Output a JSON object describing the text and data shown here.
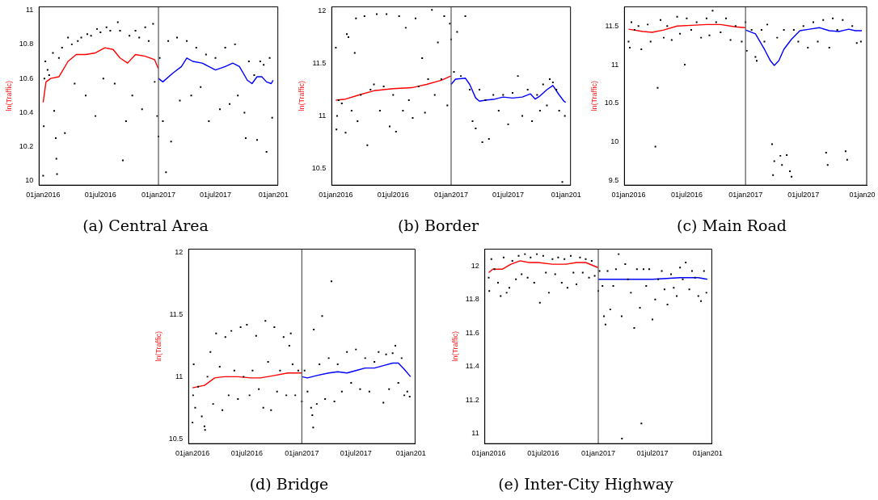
{
  "chart_data": [
    {
      "type": "scatter",
      "title": "(a) Central Area",
      "ylabel": "ln(Traffic)",
      "marker": "square",
      "grid": false,
      "legend": false,
      "xlim": [
        "2015-12-19",
        "2018-01-15"
      ],
      "ylim": [
        9.975,
        11.02
      ],
      "xticks": [
        {
          "value": "2016-01-01",
          "label": "01jan2016"
        },
        {
          "value": "2016-07-01",
          "label": "01jul2016"
        },
        {
          "value": "2017-01-01",
          "label": "01jan2017"
        },
        {
          "value": "2017-07-01",
          "label": "01jul2017"
        },
        {
          "value": "2018-01-01",
          "label": "01jan201"
        }
      ],
      "yticks": [
        10,
        10.2,
        10.4,
        10.6,
        10.8,
        11
      ],
      "ref_lines": [
        {
          "axis": "x",
          "value": "2017-01-01",
          "color": "#555555"
        }
      ],
      "series": [
        {
          "color": "#000000",
          "x": [
            "2016-01-01",
            "2016-01-03",
            "2016-01-05",
            "2016-01-08",
            "2016-01-15",
            "2016-01-20",
            "2016-02-01",
            "2016-02-05",
            "2016-02-10",
            "2016-02-12",
            "2016-02-14",
            "2016-02-20",
            "2016-03-01",
            "2016-03-10",
            "2016-03-20",
            "2016-04-01",
            "2016-04-10",
            "2016-04-20",
            "2016-05-01",
            "2016-05-15",
            "2016-05-20",
            "2016-06-01",
            "2016-06-15",
            "2016-06-20",
            "2016-07-01",
            "2016-07-10",
            "2016-07-20",
            "2016-08-01",
            "2016-08-15",
            "2016-08-25",
            "2016-09-01",
            "2016-09-10",
            "2016-09-20",
            "2016-10-01",
            "2016-10-10",
            "2016-10-20",
            "2016-11-01",
            "2016-11-10",
            "2016-11-20",
            "2016-12-01",
            "2016-12-15",
            "2016-12-20",
            "2016-12-28",
            "2017-01-01",
            "2017-01-05",
            "2017-01-15",
            "2017-01-25",
            "2017-02-01",
            "2017-02-10",
            "2017-03-01",
            "2017-03-10",
            "2017-04-01",
            "2017-04-15",
            "2017-05-01",
            "2017-05-15",
            "2017-06-01",
            "2017-06-10",
            "2017-07-01",
            "2017-07-15",
            "2017-08-01",
            "2017-08-15",
            "2017-09-01",
            "2017-09-10",
            "2017-10-01",
            "2017-10-05",
            "2017-10-15",
            "2017-11-01",
            "2017-11-10",
            "2017-11-20",
            "2017-12-01",
            "2017-12-10",
            "2017-12-20",
            "2017-12-28"
          ],
          "values": [
            10.03,
            10.32,
            10.6,
            10.7,
            10.65,
            10.62,
            10.75,
            10.41,
            10.25,
            10.13,
            10.04,
            10.72,
            10.78,
            10.28,
            10.84,
            10.8,
            10.57,
            10.82,
            10.84,
            10.5,
            10.86,
            10.85,
            10.38,
            10.89,
            10.87,
            10.6,
            10.9,
            10.88,
            10.57,
            10.93,
            10.88,
            10.12,
            10.35,
            10.85,
            10.5,
            10.88,
            10.84,
            10.42,
            10.9,
            10.82,
            10.92,
            10.58,
            10.38,
            10.26,
            10.72,
            10.35,
            10.05,
            10.82,
            10.23,
            10.84,
            10.47,
            10.82,
            10.5,
            10.78,
            10.55,
            10.74,
            10.35,
            10.72,
            10.42,
            10.78,
            10.45,
            10.8,
            10.5,
            10.4,
            10.25,
            10.7,
            10.62,
            10.24,
            10.7,
            10.68,
            10.17,
            10.72,
            10.37
          ]
        },
        {
          "type": "line",
          "color": "#ff0000",
          "x": [
            "2016-01-01",
            "2016-01-10",
            "2016-01-25",
            "2016-02-20",
            "2016-03-20",
            "2016-04-15",
            "2016-05-15",
            "2016-06-15",
            "2016-07-15",
            "2016-08-10",
            "2016-09-01",
            "2016-09-25",
            "2016-10-20",
            "2016-11-20",
            "2016-12-20",
            "2016-12-31"
          ],
          "values": [
            10.46,
            10.58,
            10.6,
            10.61,
            10.7,
            10.74,
            10.74,
            10.75,
            10.78,
            10.77,
            10.72,
            10.69,
            10.74,
            10.73,
            10.71,
            10.66
          ],
          "marker": "none"
        },
        {
          "type": "line",
          "color": "#0000ff",
          "x": [
            "2017-01-01",
            "2017-01-15",
            "2017-02-15",
            "2017-03-15",
            "2017-04-01",
            "2017-04-20",
            "2017-05-20",
            "2017-06-10",
            "2017-07-01",
            "2017-08-01",
            "2017-08-25",
            "2017-09-15",
            "2017-10-10",
            "2017-10-25",
            "2017-11-10",
            "2017-11-25",
            "2017-12-10",
            "2017-12-25",
            "2017-12-31"
          ],
          "values": [
            10.6,
            10.58,
            10.63,
            10.67,
            10.72,
            10.7,
            10.69,
            10.67,
            10.65,
            10.67,
            10.69,
            10.67,
            10.59,
            10.57,
            10.61,
            10.61,
            10.58,
            10.57,
            10.59
          ],
          "marker": "none"
        }
      ]
    },
    {
      "type": "scatter",
      "title": "(b) Border",
      "ylabel": "ln(Traffic)",
      "marker": "square",
      "grid": false,
      "legend": false,
      "xlim": [
        "2015-12-19",
        "2018-01-15"
      ],
      "ylim": [
        10.34,
        12.04
      ],
      "xticks": [
        {
          "value": "2016-01-01",
          "label": "01jan2016"
        },
        {
          "value": "2016-07-01",
          "label": "01jul2016"
        },
        {
          "value": "2017-01-01",
          "label": "01jan2017"
        },
        {
          "value": "2017-07-01",
          "label": "01jul2017"
        },
        {
          "value": "2018-01-01",
          "label": "01jan201"
        }
      ],
      "yticks": [
        10.5,
        11,
        11.5,
        12
      ],
      "ref_lines": [
        {
          "axis": "x",
          "value": "2017-01-01",
          "color": "#555555"
        }
      ],
      "series": [
        {
          "color": "#000000",
          "x": [
            "2016-01-01",
            "2016-01-03",
            "2016-01-05",
            "2016-01-10",
            "2016-01-20",
            "2016-02-01",
            "2016-02-05",
            "2016-02-10",
            "2016-02-20",
            "2016-03-01",
            "2016-03-05",
            "2016-03-10",
            "2016-03-20",
            "2016-04-01",
            "2016-04-10",
            "2016-04-20",
            "2016-05-01",
            "2016-05-10",
            "2016-05-20",
            "2016-06-01",
            "2016-06-10",
            "2016-06-20",
            "2016-07-01",
            "2016-07-10",
            "2016-07-20",
            "2016-08-01",
            "2016-08-10",
            "2016-08-20",
            "2016-09-01",
            "2016-09-10",
            "2016-09-20",
            "2016-10-01",
            "2016-10-10",
            "2016-10-20",
            "2016-11-01",
            "2016-11-10",
            "2016-11-20",
            "2016-12-01",
            "2016-12-10",
            "2016-12-20",
            "2016-12-28",
            "2017-01-01",
            "2017-01-10",
            "2017-01-20",
            "2017-02-01",
            "2017-02-15",
            "2017-03-01",
            "2017-03-10",
            "2017-03-20",
            "2017-04-01",
            "2017-04-10",
            "2017-04-20",
            "2017-05-01",
            "2017-05-15",
            "2017-06-01",
            "2017-06-15",
            "2017-07-01",
            "2017-07-15",
            "2017-08-01",
            "2017-08-15",
            "2017-09-01",
            "2017-09-15",
            "2017-10-01",
            "2017-10-10",
            "2017-10-20",
            "2017-11-01",
            "2017-11-10",
            "2017-11-20",
            "2017-12-01",
            "2017-12-10",
            "2017-12-20",
            "2017-12-28"
          ],
          "values": [
            11.65,
            10.87,
            11.0,
            11.15,
            11.12,
            10.84,
            11.78,
            11.75,
            11.05,
            11.6,
            11.93,
            10.95,
            11.2,
            11.95,
            10.72,
            11.25,
            11.3,
            11.97,
            11.05,
            11.28,
            11.97,
            10.9,
            11.2,
            10.85,
            11.95,
            11.05,
            11.84,
            11.15,
            10.98,
            11.93,
            11.28,
            11.55,
            11.03,
            11.35,
            12.01,
            11.2,
            11.7,
            11.35,
            11.95,
            11.1,
            11.88,
            11.73,
            11.42,
            11.8,
            11.38,
            11.95,
            11.25,
            10.95,
            10.88,
            11.25,
            10.75,
            11.15,
            10.78,
            11.2,
            11.05,
            11.2,
            10.92,
            11.22,
            11.38,
            11.0,
            11.25,
            10.95,
            11.2,
            11.05,
            11.3,
            11.1,
            11.35,
            11.32,
            11.25,
            11.05,
            10.37,
            11.0
          ]
        },
        {
          "type": "line",
          "color": "#ff0000",
          "x": [
            "2016-01-01",
            "2016-02-01",
            "2016-03-15",
            "2016-05-01",
            "2016-07-01",
            "2016-09-01",
            "2016-10-15",
            "2016-12-01",
            "2016-12-31"
          ],
          "values": [
            11.15,
            11.16,
            11.2,
            11.24,
            11.26,
            11.27,
            11.3,
            11.34,
            11.38
          ],
          "marker": "none"
        },
        {
          "type": "line",
          "color": "#0000ff",
          "x": [
            "2017-01-01",
            "2017-01-15",
            "2017-02-15",
            "2017-03-01",
            "2017-03-20",
            "2017-04-01",
            "2017-04-20",
            "2017-05-20",
            "2017-06-15",
            "2017-07-15",
            "2017-08-15",
            "2017-09-10",
            "2017-09-25",
            "2017-10-10",
            "2017-11-01",
            "2017-11-20",
            "2017-12-10",
            "2017-12-25",
            "2017-12-31"
          ],
          "values": [
            11.3,
            11.35,
            11.36,
            11.3,
            11.17,
            11.14,
            11.15,
            11.16,
            11.18,
            11.17,
            11.18,
            11.21,
            11.16,
            11.19,
            11.25,
            11.29,
            11.2,
            11.14,
            11.13
          ],
          "marker": "none"
        }
      ]
    },
    {
      "type": "scatter",
      "title": "(c) Main Road",
      "ylabel": "ln(Traffic)",
      "marker": "square",
      "grid": false,
      "legend": false,
      "xlim": [
        "2015-12-19",
        "2018-01-15"
      ],
      "ylim": [
        9.44,
        11.75
      ],
      "xticks": [
        {
          "value": "2016-01-01",
          "label": "01jan2016"
        },
        {
          "value": "2016-07-01",
          "label": "01jul2016"
        },
        {
          "value": "2017-01-01",
          "label": "01jan2017"
        },
        {
          "value": "2017-07-01",
          "label": "01jul2017"
        },
        {
          "value": "2018-01-01",
          "label": "01jan20"
        }
      ],
      "yticks": [
        9.5,
        10,
        10.5,
        11,
        11.5
      ],
      "ref_lines": [
        {
          "axis": "x",
          "value": "2017-01-01",
          "color": "#555555"
        }
      ],
      "series": [
        {
          "color": "#000000",
          "x": [
            "2016-01-01",
            "2016-01-05",
            "2016-01-10",
            "2016-01-20",
            "2016-02-01",
            "2016-02-10",
            "2016-03-01",
            "2016-03-10",
            "2016-03-25",
            "2016-04-01",
            "2016-04-10",
            "2016-04-20",
            "2016-05-01",
            "2016-05-15",
            "2016-06-01",
            "2016-06-10",
            "2016-06-25",
            "2016-07-01",
            "2016-07-15",
            "2016-08-01",
            "2016-08-15",
            "2016-09-01",
            "2016-09-10",
            "2016-09-20",
            "2016-10-01",
            "2016-10-15",
            "2016-11-01",
            "2016-11-15",
            "2016-12-01",
            "2016-12-20",
            "2017-01-01",
            "2017-01-05",
            "2017-01-20",
            "2017-02-01",
            "2017-02-05",
            "2017-02-20",
            "2017-03-01",
            "2017-03-10",
            "2017-03-25",
            "2017-03-28",
            "2017-04-01",
            "2017-04-10",
            "2017-04-20",
            "2017-04-25",
            "2017-05-01",
            "2017-05-10",
            "2017-05-20",
            "2017-05-25",
            "2017-06-01",
            "2017-06-15",
            "2017-07-01",
            "2017-07-15",
            "2017-08-01",
            "2017-08-15",
            "2017-09-01",
            "2017-09-10",
            "2017-09-15",
            "2017-09-20",
            "2017-10-01",
            "2017-10-15",
            "2017-11-01",
            "2017-11-10",
            "2017-11-15",
            "2017-12-01",
            "2017-12-15",
            "2017-12-28"
          ],
          "values": [
            11.3,
            11.22,
            11.55,
            11.45,
            11.5,
            11.2,
            11.52,
            11.3,
            9.94,
            10.7,
            11.58,
            11.35,
            11.5,
            11.32,
            11.62,
            11.4,
            11.0,
            11.6,
            11.45,
            11.55,
            11.35,
            11.6,
            11.38,
            11.7,
            11.55,
            11.42,
            11.6,
            11.32,
            11.5,
            11.3,
            11.55,
            11.18,
            11.45,
            11.1,
            11.05,
            11.45,
            11.3,
            11.52,
            9.97,
            9.57,
            9.75,
            11.35,
            9.82,
            9.7,
            11.45,
            9.83,
            9.62,
            9.55,
            11.45,
            11.3,
            11.5,
            11.22,
            11.55,
            11.3,
            11.58,
            9.86,
            9.7,
            11.22,
            11.6,
            11.45,
            11.58,
            9.88,
            9.77,
            11.5,
            11.28,
            11.3
          ]
        },
        {
          "type": "line",
          "color": "#ff0000",
          "x": [
            "2016-01-01",
            "2016-02-15",
            "2016-03-15",
            "2016-04-20",
            "2016-06-01",
            "2016-07-15",
            "2016-09-01",
            "2016-10-15",
            "2016-12-01",
            "2016-12-31"
          ],
          "values": [
            11.46,
            11.43,
            11.42,
            11.45,
            11.5,
            11.51,
            11.52,
            11.52,
            11.49,
            11.48
          ],
          "marker": "none"
        },
        {
          "type": "line",
          "color": "#0000ff",
          "x": [
            "2017-01-01",
            "2017-02-01",
            "2017-03-01",
            "2017-03-20",
            "2017-04-01",
            "2017-04-15",
            "2017-05-01",
            "2017-05-25",
            "2017-06-20",
            "2017-07-20",
            "2017-08-20",
            "2017-09-20",
            "2017-10-20",
            "2017-11-20",
            "2017-12-10",
            "2017-12-31"
          ],
          "values": [
            11.45,
            11.4,
            11.2,
            11.05,
            10.99,
            11.05,
            11.2,
            11.33,
            11.44,
            11.46,
            11.48,
            11.44,
            11.43,
            11.46,
            11.44,
            11.44
          ],
          "marker": "none"
        }
      ]
    },
    {
      "type": "scatter",
      "title": "(d) Bridge",
      "ylabel": "ln(Traffic)",
      "marker": "square",
      "grid": false,
      "legend": false,
      "xlim": [
        "2015-12-19",
        "2018-01-15"
      ],
      "ylim": [
        10.46,
        12.03
      ],
      "xticks": [
        {
          "value": "2016-01-01",
          "label": "01jan2016"
        },
        {
          "value": "2016-07-01",
          "label": "01jul2016"
        },
        {
          "value": "2017-01-01",
          "label": "01jan2017"
        },
        {
          "value": "2017-07-01",
          "label": "01jul2017"
        },
        {
          "value": "2018-01-01",
          "label": "01jan201"
        }
      ],
      "yticks": [
        10.5,
        11,
        11.5,
        12
      ],
      "ref_lines": [
        {
          "axis": "x",
          "value": "2017-01-01",
          "color": "#555555"
        }
      ],
      "series": [
        {
          "color": "#000000",
          "x": [
            "2016-01-01",
            "2016-01-03",
            "2016-01-05",
            "2016-01-10",
            "2016-01-20",
            "2016-02-01",
            "2016-02-10",
            "2016-02-12",
            "2016-02-20",
            "2016-03-01",
            "2016-03-10",
            "2016-03-20",
            "2016-04-01",
            "2016-04-10",
            "2016-04-20",
            "2016-05-01",
            "2016-05-10",
            "2016-05-20",
            "2016-06-01",
            "2016-06-10",
            "2016-06-20",
            "2016-07-01",
            "2016-07-10",
            "2016-07-20",
            "2016-08-01",
            "2016-08-10",
            "2016-08-25",
            "2016-09-01",
            "2016-09-10",
            "2016-09-20",
            "2016-10-01",
            "2016-10-10",
            "2016-10-20",
            "2016-11-01",
            "2016-11-10",
            "2016-11-20",
            "2016-11-25",
            "2016-12-01",
            "2016-12-10",
            "2016-12-20",
            "2017-01-01",
            "2017-01-10",
            "2017-01-20",
            "2017-02-01",
            "2017-02-05",
            "2017-02-08",
            "2017-02-10",
            "2017-02-20",
            "2017-03-01",
            "2017-03-10",
            "2017-03-20",
            "2017-04-01",
            "2017-04-10",
            "2017-04-20",
            "2017-05-01",
            "2017-05-15",
            "2017-06-01",
            "2017-06-15",
            "2017-07-01",
            "2017-07-15",
            "2017-08-01",
            "2017-08-15",
            "2017-09-01",
            "2017-09-15",
            "2017-10-01",
            "2017-10-10",
            "2017-10-20",
            "2017-11-01",
            "2017-11-10",
            "2017-11-20",
            "2017-12-01",
            "2017-12-10",
            "2017-12-20",
            "2017-12-28"
          ],
          "values": [
            10.63,
            10.85,
            11.1,
            10.75,
            10.92,
            10.68,
            10.6,
            10.57,
            11.0,
            11.2,
            10.78,
            11.35,
            11.08,
            10.73,
            11.32,
            10.85,
            11.37,
            11.05,
            10.82,
            11.4,
            11.0,
            11.42,
            10.85,
            11.05,
            11.33,
            10.9,
            10.75,
            11.45,
            11.12,
            10.73,
            11.4,
            10.88,
            11.05,
            11.32,
            10.85,
            11.25,
            11.35,
            11.1,
            10.85,
            11.05,
            10.8,
            11.05,
            10.88,
            10.75,
            10.69,
            10.59,
            11.38,
            10.78,
            11.1,
            11.49,
            10.82,
            11.15,
            11.77,
            10.8,
            11.1,
            10.88,
            11.2,
            10.95,
            11.22,
            10.9,
            11.15,
            10.88,
            11.12,
            11.2,
            10.79,
            11.18,
            10.9,
            11.19,
            11.25,
            10.95,
            11.15,
            10.85,
            10.88,
            10.84
          ]
        },
        {
          "type": "line",
          "color": "#ff0000",
          "x": [
            "2016-01-01",
            "2016-01-20",
            "2016-02-10",
            "2016-03-15",
            "2016-04-15",
            "2016-06-01",
            "2016-07-15",
            "2016-08-15",
            "2016-10-01",
            "2016-11-15",
            "2016-12-31"
          ],
          "values": [
            10.91,
            10.92,
            10.93,
            10.99,
            11.0,
            11.0,
            10.99,
            10.99,
            11.01,
            11.03,
            11.03
          ],
          "marker": "none"
        },
        {
          "type": "line",
          "color": "#0000ff",
          "x": [
            "2017-01-01",
            "2017-01-20",
            "2017-02-20",
            "2017-04-01",
            "2017-05-01",
            "2017-06-01",
            "2017-07-01",
            "2017-08-01",
            "2017-09-01",
            "2017-10-01",
            "2017-11-01",
            "2017-11-20",
            "2017-12-10",
            "2017-12-31"
          ],
          "values": [
            11.0,
            10.99,
            11.01,
            11.03,
            11.04,
            11.03,
            11.05,
            11.07,
            11.07,
            11.09,
            11.11,
            11.11,
            11.06,
            11.0
          ],
          "marker": "none"
        }
      ]
    },
    {
      "type": "scatter",
      "title": "(e) Inter-City Highway",
      "ylabel": "ln(Traffic)",
      "marker": "square",
      "grid": false,
      "legend": false,
      "xlim": [
        "2015-12-19",
        "2018-01-15"
      ],
      "ylim": [
        10.94,
        12.1
      ],
      "xticks": [
        {
          "value": "2016-01-01",
          "label": "01jan2016"
        },
        {
          "value": "2016-07-01",
          "label": "01jul2016"
        },
        {
          "value": "2017-01-01",
          "label": "01jan2017"
        },
        {
          "value": "2017-07-01",
          "label": "01jul2017"
        },
        {
          "value": "2018-01-01",
          "label": "01jan201"
        }
      ],
      "yticks": [
        11,
        11.2,
        11.4,
        11.6,
        11.8,
        12
      ],
      "ref_lines": [
        {
          "axis": "x",
          "value": "2017-01-01",
          "color": "#555555"
        }
      ],
      "series": [
        {
          "color": "#000000",
          "x": [
            "2016-01-01",
            "2016-01-03",
            "2016-01-10",
            "2016-01-20",
            "2016-02-01",
            "2016-02-10",
            "2016-02-20",
            "2016-03-01",
            "2016-03-10",
            "2016-03-20",
            "2016-04-01",
            "2016-04-10",
            "2016-04-20",
            "2016-05-01",
            "2016-05-10",
            "2016-05-20",
            "2016-06-01",
            "2016-06-10",
            "2016-06-20",
            "2016-07-01",
            "2016-07-10",
            "2016-07-20",
            "2016-08-01",
            "2016-08-10",
            "2016-08-20",
            "2016-09-01",
            "2016-09-10",
            "2016-09-20",
            "2016-10-01",
            "2016-10-10",
            "2016-10-20",
            "2016-11-01",
            "2016-11-10",
            "2016-11-20",
            "2016-12-01",
            "2016-12-10",
            "2016-12-20",
            "2017-01-01",
            "2017-01-05",
            "2017-01-15",
            "2017-01-20",
            "2017-01-25",
            "2017-02-01",
            "2017-02-10",
            "2017-02-20",
            "2017-03-01",
            "2017-03-10",
            "2017-03-20",
            "2017-03-21",
            "2017-04-01",
            "2017-04-10",
            "2017-04-20",
            "2017-05-01",
            "2017-05-10",
            "2017-05-20",
            "2017-05-25",
            "2017-06-01",
            "2017-06-10",
            "2017-06-20",
            "2017-07-01",
            "2017-07-10",
            "2017-07-20",
            "2017-08-01",
            "2017-08-10",
            "2017-08-20",
            "2017-09-01",
            "2017-09-10",
            "2017-09-20",
            "2017-10-01",
            "2017-10-10",
            "2017-10-20",
            "2017-11-01",
            "2017-11-10",
            "2017-11-20",
            "2017-12-01",
            "2017-12-10",
            "2017-12-20",
            "2017-12-28"
          ],
          "values": [
            11.93,
            11.85,
            12.04,
            11.98,
            11.9,
            11.82,
            12.05,
            11.84,
            11.87,
            12.03,
            11.92,
            12.06,
            11.95,
            12.07,
            11.93,
            12.05,
            11.9,
            12.07,
            11.78,
            12.06,
            11.96,
            11.84,
            12.04,
            11.95,
            12.05,
            11.9,
            12.04,
            11.87,
            12.06,
            11.96,
            11.89,
            12.05,
            11.96,
            12.04,
            11.93,
            12.03,
            11.94,
            11.85,
            11.97,
            11.88,
            11.7,
            11.65,
            11.97,
            11.74,
            11.88,
            11.98,
            12.07,
            11.7,
            10.97,
            12.01,
            11.92,
            11.84,
            11.63,
            11.98,
            11.75,
            11.06,
            11.98,
            11.88,
            11.98,
            11.68,
            11.8,
            11.92,
            11.97,
            11.86,
            11.77,
            11.95,
            11.87,
            11.82,
            11.99,
            11.92,
            12.02,
            11.86,
            11.97,
            11.93,
            11.82,
            11.79,
            11.97,
            11.84
          ]
        },
        {
          "type": "line",
          "color": "#ff0000",
          "x": [
            "2016-01-01",
            "2016-01-15",
            "2016-02-15",
            "2016-03-15",
            "2016-04-15",
            "2016-05-15",
            "2016-06-15",
            "2016-08-01",
            "2016-09-15",
            "2016-10-20",
            "2016-11-20",
            "2016-12-31"
          ],
          "values": [
            11.96,
            11.98,
            11.98,
            12.01,
            12.03,
            12.02,
            12.02,
            12.01,
            12.01,
            12.02,
            12.02,
            11.99
          ],
          "marker": "none"
        },
        {
          "type": "line",
          "color": "#0000ff",
          "x": [
            "2017-01-01",
            "2017-04-01",
            "2017-07-01",
            "2017-10-01",
            "2017-12-01",
            "2017-12-31"
          ],
          "values": [
            11.92,
            11.92,
            11.92,
            11.93,
            11.93,
            11.92
          ],
          "marker": "none"
        }
      ]
    }
  ]
}
